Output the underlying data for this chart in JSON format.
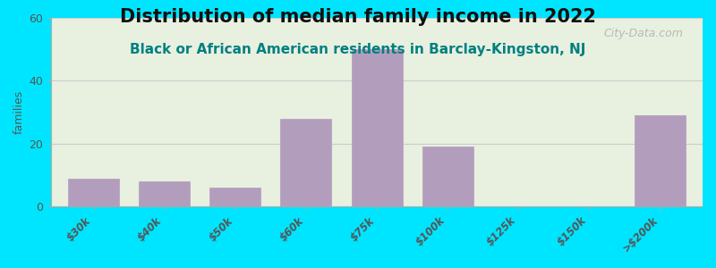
{
  "title": "Distribution of median family income in 2022",
  "subtitle": "Black or African American residents in Barclay-Kingston, NJ",
  "categories": [
    "$30k",
    "$40k",
    "$50k",
    "$60k",
    "$75k",
    "$100k",
    "$125k",
    "$150k",
    ">$200k"
  ],
  "values": [
    9,
    8,
    6,
    28,
    50,
    19,
    0,
    0,
    29
  ],
  "bar_color": "#b39dbd",
  "background_outer": "#00e5ff",
  "background_plot": "#e8f0e0",
  "ylabel": "families",
  "ylim": [
    0,
    60
  ],
  "yticks": [
    0,
    20,
    40,
    60
  ],
  "watermark": "City-Data.com",
  "title_fontsize": 15,
  "subtitle_fontsize": 11,
  "subtitle_color": "#008080"
}
